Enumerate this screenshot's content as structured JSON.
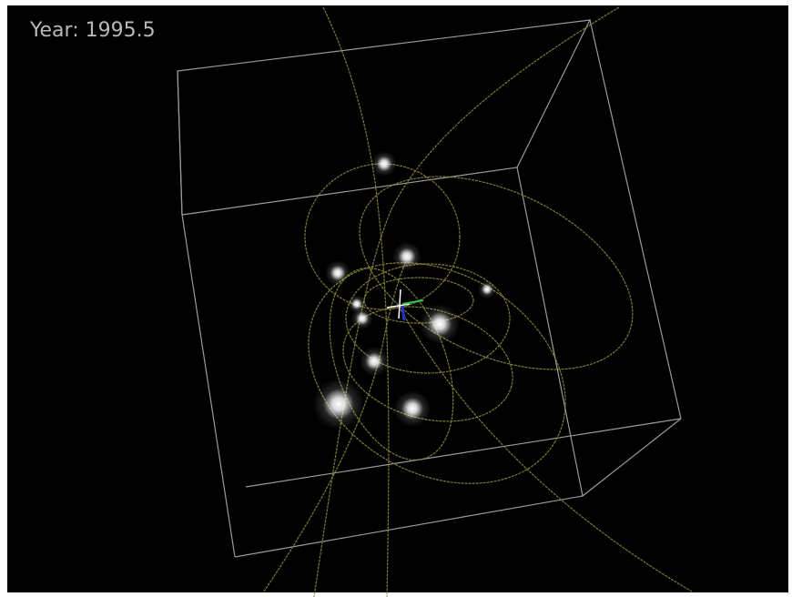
{
  "overlay": {
    "year_label": "Year: 1995.5"
  }
}
